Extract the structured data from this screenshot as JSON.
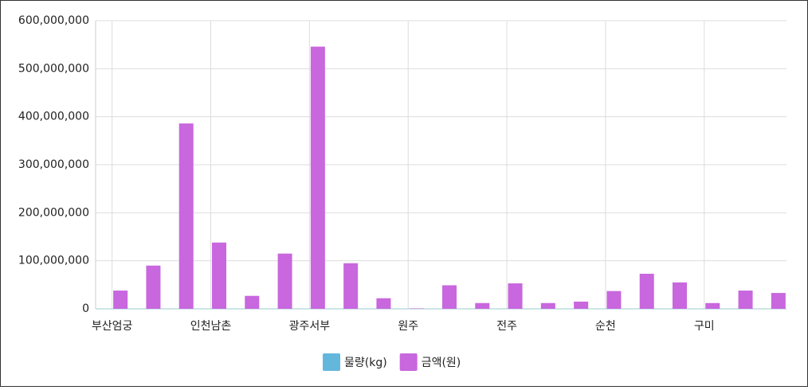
{
  "chart_data": {
    "type": "bar",
    "categories": [
      "부산엄궁",
      null,
      null,
      "인천남촌",
      null,
      null,
      "광주서부",
      null,
      null,
      "원주",
      null,
      null,
      "전주",
      null,
      null,
      "순천",
      null,
      null,
      "구미",
      null,
      null
    ],
    "series": [
      {
        "name": "물량(kg)",
        "color": "#63b7dc",
        "values": [
          0,
          0,
          0,
          0,
          0,
          0,
          0,
          0,
          0,
          0,
          0,
          0,
          0,
          0,
          0,
          0,
          0,
          0,
          0,
          0,
          0
        ]
      },
      {
        "name": "금액(원)",
        "color": "#c867de",
        "values": [
          38000000,
          90000000,
          386000000,
          138000000,
          27000000,
          115000000,
          546000000,
          95000000,
          22000000,
          1000000,
          49000000,
          12000000,
          53000000,
          12000000,
          15000000,
          37000000,
          73000000,
          55000000,
          12000000,
          38000000,
          33000000
        ]
      }
    ],
    "ylim": [
      0,
      600000000
    ],
    "yticks": [
      0,
      {
        "value": 100000000,
        "label": "100,000,000"
      },
      {
        "value": 200000000,
        "label": "200,000,000"
      },
      {
        "value": 300000000,
        "label": "300,000,000"
      },
      {
        "value": 400000000,
        "label": "400,000,000"
      },
      {
        "value": 500000000,
        "label": "500,000,000"
      },
      {
        "value": 600000000,
        "label": "600,000,000"
      }
    ],
    "grid": true
  }
}
